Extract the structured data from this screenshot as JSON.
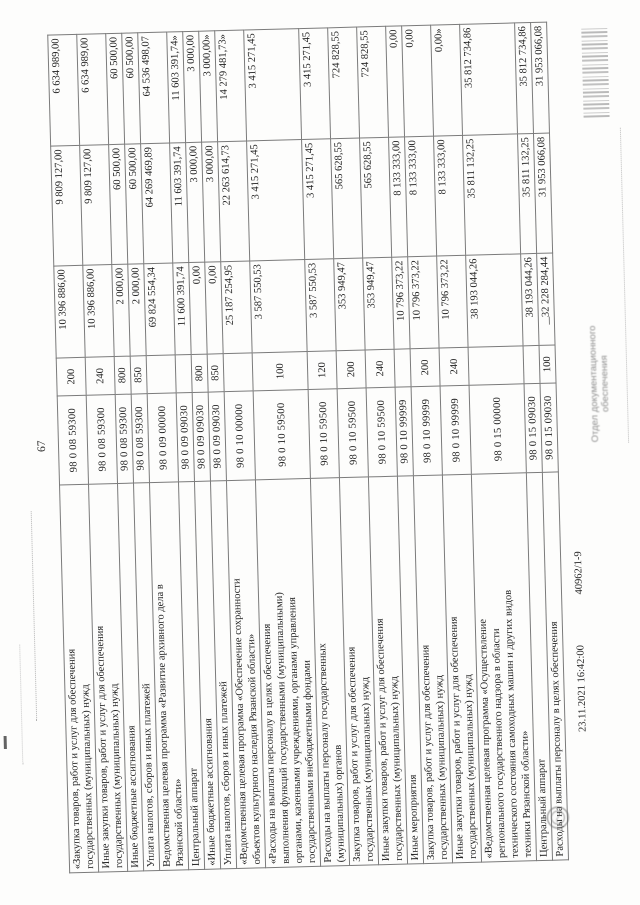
{
  "page": {
    "page_number": "67",
    "footer": {
      "datetime": "23.11.2021 16:42:00",
      "doc_number": "40962/1-9",
      "stamp_text": "Отдел документационного\nобеспечения"
    },
    "colors": {
      "ink": "#1f1f1f",
      "grid": "#7b7b7b",
      "stamp_gray": "#8f8f8f"
    }
  },
  "table": {
    "rows": [
      {
        "label": "«Закупка товаров, работ и услуг для обеспечения\nгосударственных (муниципальных) нужд",
        "code": "98 0 08 59300",
        "vid": "200",
        "sum1": "10 396 886,00",
        "sum2": "9 809 127,00",
        "sum3": "6 634 989,00"
      },
      {
        "label": "Иные закупки товаров, работ и услуг для обеспечения\nгосударственных (муниципальных) нужд",
        "code": "98 0 08 59300",
        "vid": "240",
        "sum1": "10 396 886,00",
        "sum2": "9 809 127,00",
        "sum3": "6 634 989,00"
      },
      {
        "label": "Иные бюджетные ассигнования",
        "code": "98 0 08 59300",
        "vid": "800",
        "sum1": "2 000,00",
        "sum2": "60 500,00",
        "sum3": "60 500,00"
      },
      {
        "label": "Уплата налогов, сборов и иных платежей",
        "code": "98 0 08 59300",
        "vid": "850",
        "sum1": "2 000,00",
        "sum2": "60 500,00",
        "sum3": "60 500,00"
      },
      {
        "label": "Ведомственная целевая программа «Развитие архивного дела в\nРязанской области»",
        "code": "98 0 09 00000",
        "vid": "",
        "sum1": "69 824 554,34",
        "sum2": "64 269 469,89",
        "sum3": "64 536 498,07"
      },
      {
        "label": "Центральный аппарат",
        "code": "98 0 09 09030",
        "vid": "",
        "sum1": "11 600 391,74",
        "sum2": "11 603 391,74",
        "sum3": "11 603 391,74»"
      },
      {
        "label": "«Иные бюджетные ассигнования",
        "code": "98 0 09 09030",
        "vid": "800",
        "sum1": "0,00",
        "sum2": "3 000,00",
        "sum3": "3 000,00"
      },
      {
        "label": "Уплата налогов, сборов и иных платежей",
        "code": "98 0 09 09030",
        "vid": "850",
        "sum1": "0,00",
        "sum2": "3 000,00",
        "sum3": "3 000,00»"
      },
      {
        "label": "«Ведомственная целевая программа «Обеспечение сохранности\nобъектов культурного наследия Рязанской области»",
        "code": "98 0 10 00000",
        "vid": "",
        "sum1": "25 187 254,95",
        "sum2": "22 263 614,73",
        "sum3": "14 279 481,73»"
      },
      {
        "label": "«Расходы на выплаты персоналу в целях обеспечения\nвыполнения функций государственными (муниципальными)\nорганами, казенными учреждениями, органами управления\nгосударственными внебюджетными фондами",
        "code": "98 0 10 59500",
        "vid": "100",
        "sum1": "3 587 550,53",
        "sum2": "3 415 271,45",
        "sum3": "3 415 271,45"
      },
      {
        "label": "Расходы на выплаты персоналу государственных\n(муниципальных) органов",
        "code": "98 0 10 59500",
        "vid": "120",
        "sum1": "3 587 550,53",
        "sum2": "3 415 271,45",
        "sum3": "3 415 271,45"
      },
      {
        "label": "Закупка товаров, работ и услуг для обеспечения\nгосударственных (муниципальных) нужд",
        "code": "98 0 10 59500",
        "vid": "200",
        "sum1": "353 949,47",
        "sum2": "565 628,55",
        "sum3": "724 828,55"
      },
      {
        "label": "Иные закупки товаров, работ и услуг для обеспечения\nгосударственных (муниципальных) нужд",
        "code": "98 0 10 59500",
        "vid": "240",
        "sum1": "353 949,47",
        "sum2": "565 628,55",
        "sum3": "724 828,55"
      },
      {
        "label": "Иные мероприятия",
        "code": "98 0 10 99999",
        "vid": "",
        "sum1": "10 796 373,22",
        "sum2": "8 133 333,00",
        "sum3": "0,00"
      },
      {
        "label": "Закупка товаров, работ и услуг для обеспечения\nгосударственных (муниципальных) нужд",
        "code": "98 0 10 99999",
        "vid": "200",
        "sum1": "10 796 373,22",
        "sum2": "8 133 333,00",
        "sum3": "0,00"
      },
      {
        "label": "Иные закупки товаров, работ и услуг для обеспечения\nгосударственных (муниципальных) нужд",
        "code": "98 0 10 99999",
        "vid": "240",
        "sum1": "10 796 373,22",
        "sum2": "8 133 333,00",
        "sum3": "0,00»"
      },
      {
        "label": "«Ведомственная целевая программа «Осуществление\nрегионального государственного надзора в области\nтехнического состояния самоходных машин и других видов\nтехники Рязанской области»",
        "code": "98 0 15 00000",
        "vid": "",
        "sum1": "38 193 044,26",
        "sum2": "35 811 132,25",
        "sum3": "35 812 734,86"
      },
      {
        "label": "Центральный аппарат",
        "code": "98 0 15 09030",
        "vid": "",
        "sum1": "38 193 044,26",
        "sum2": "35 811 132,25",
        "sum3": "35 812 734,86"
      },
      {
        "label": "Расходы на выплаты персоналу в целях обеспечения",
        "code": "98 0 15 09030",
        "vid": "100",
        "sum1": "32 228 284,44",
        "sum2": "31 953 066,08",
        "sum3": "31 953 066,08"
      }
    ]
  }
}
